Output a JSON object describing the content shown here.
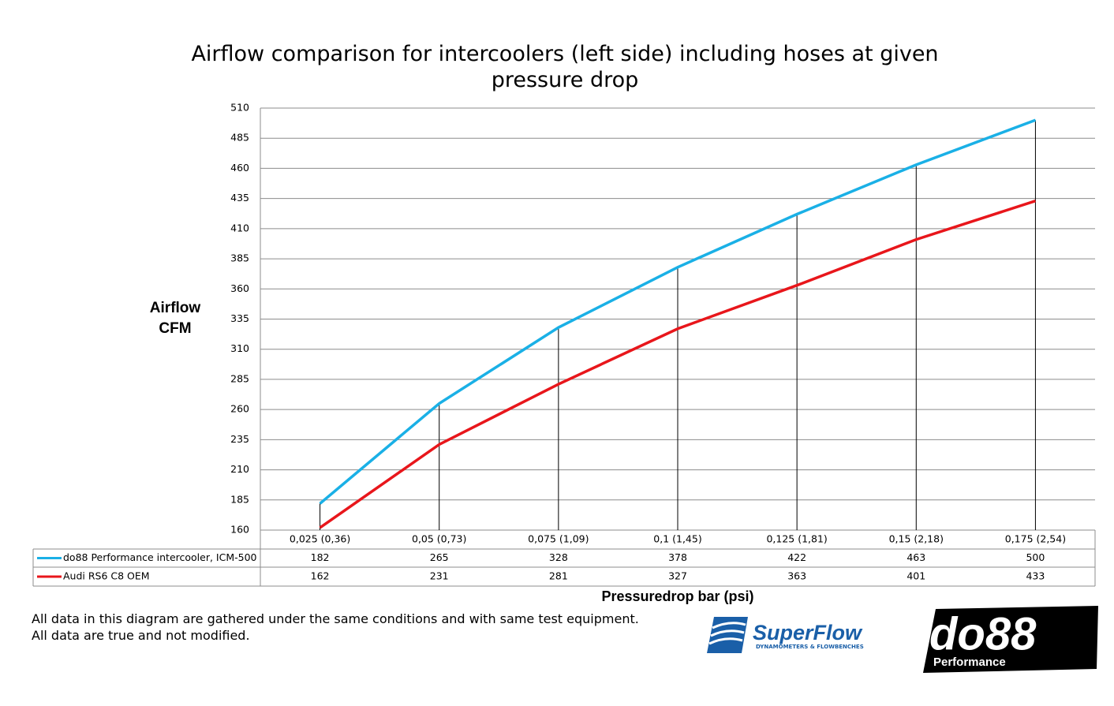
{
  "chart_data": {
    "type": "line",
    "title": "Airflow comparison for intercoolers (left side) including hoses at given pressure drop",
    "y_label": "Airflow CFM",
    "x_label": "Pressuredrop bar (psi)",
    "categories": [
      "0,025 (0,36)",
      "0,05 (0,73)",
      "0,075 (1,09)",
      "0,1 (1,45)",
      "0,125 (1,81)",
      "0,15 (2,18)",
      "0,175 (2,54)"
    ],
    "series": [
      {
        "name": "do88 Performance intercooler, ICM-500",
        "color": "#1ab0e6",
        "values": [
          182,
          265,
          328,
          378,
          422,
          463,
          500
        ]
      },
      {
        "name": "Audi RS6 C8 OEM",
        "color": "#e8161b",
        "values": [
          162,
          231,
          281,
          327,
          363,
          401,
          433
        ]
      }
    ],
    "ylim": [
      160,
      510
    ],
    "yticks": [
      160,
      185,
      210,
      235,
      260,
      285,
      310,
      335,
      360,
      385,
      410,
      435,
      460,
      485,
      510
    ],
    "grid": true,
    "drop_lines": true,
    "data_table": true,
    "notes": [
      "All data in this diagram are gathered under the same conditions and with same test equipment.",
      "All data are true and not modified."
    ],
    "logos": {
      "superflow": "SuperFlow",
      "superflow_tagline": "DYNAMOMETERS & FLOWBENCHES",
      "do88": "do88",
      "do88_tagline": "Performance"
    }
  }
}
